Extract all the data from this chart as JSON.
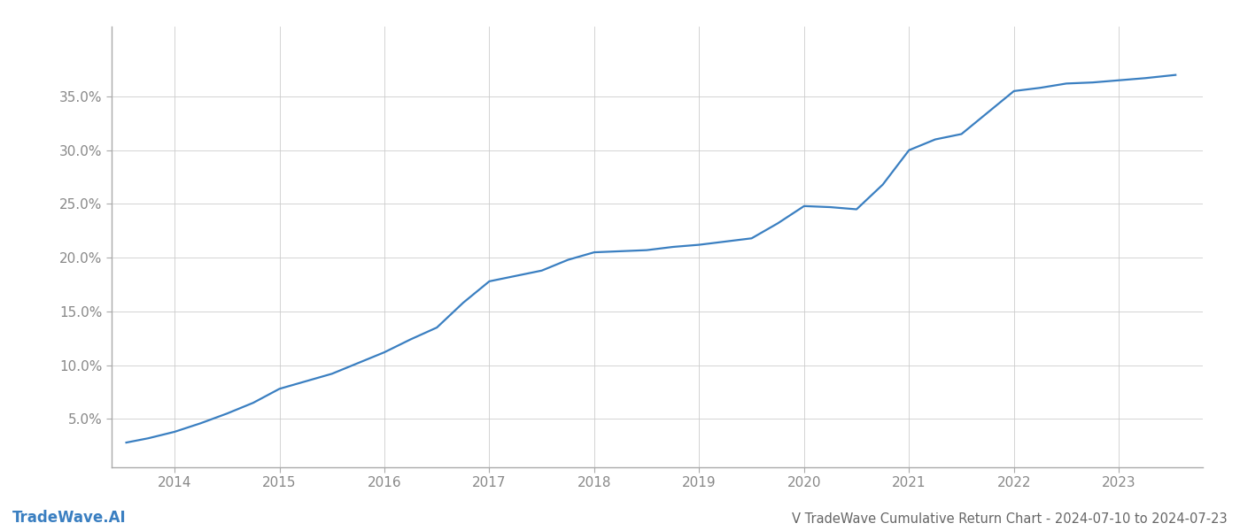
{
  "title": "V TradeWave Cumulative Return Chart - 2024-07-10 to 2024-07-23",
  "watermark": "TradeWave.AI",
  "line_color": "#3a7fc1",
  "background_color": "#ffffff",
  "grid_color": "#cccccc",
  "x_years": [
    2014,
    2015,
    2016,
    2017,
    2018,
    2019,
    2020,
    2021,
    2022,
    2023
  ],
  "x_values": [
    2013.54,
    2013.75,
    2014.0,
    2014.25,
    2014.5,
    2014.75,
    2015.0,
    2015.25,
    2015.5,
    2015.75,
    2016.0,
    2016.25,
    2016.5,
    2016.75,
    2017.0,
    2017.25,
    2017.5,
    2017.75,
    2018.0,
    2018.25,
    2018.5,
    2018.75,
    2019.0,
    2019.25,
    2019.5,
    2019.75,
    2020.0,
    2020.25,
    2020.5,
    2020.75,
    2021.0,
    2021.25,
    2021.5,
    2021.75,
    2022.0,
    2022.25,
    2022.5,
    2022.75,
    2023.0,
    2023.25,
    2023.54
  ],
  "y_values": [
    0.028,
    0.032,
    0.038,
    0.046,
    0.055,
    0.065,
    0.078,
    0.085,
    0.092,
    0.102,
    0.112,
    0.124,
    0.135,
    0.158,
    0.178,
    0.183,
    0.188,
    0.198,
    0.205,
    0.206,
    0.207,
    0.21,
    0.212,
    0.215,
    0.218,
    0.232,
    0.248,
    0.247,
    0.245,
    0.268,
    0.3,
    0.31,
    0.315,
    0.335,
    0.355,
    0.358,
    0.362,
    0.363,
    0.365,
    0.367,
    0.37
  ],
  "ylim": [
    0.005,
    0.415
  ],
  "xlim": [
    2013.4,
    2023.8
  ],
  "yticks": [
    0.05,
    0.1,
    0.15,
    0.2,
    0.25,
    0.3,
    0.35
  ],
  "ytick_labels": [
    "5.0%",
    "10.0%",
    "15.0%",
    "20.0%",
    "25.0%",
    "30.0%",
    "35.0%"
  ],
  "line_width": 1.6,
  "title_fontsize": 10.5,
  "tick_fontsize": 11,
  "watermark_fontsize": 12,
  "axis_label_color": "#888888",
  "title_color": "#666666",
  "spine_color": "#aaaaaa"
}
